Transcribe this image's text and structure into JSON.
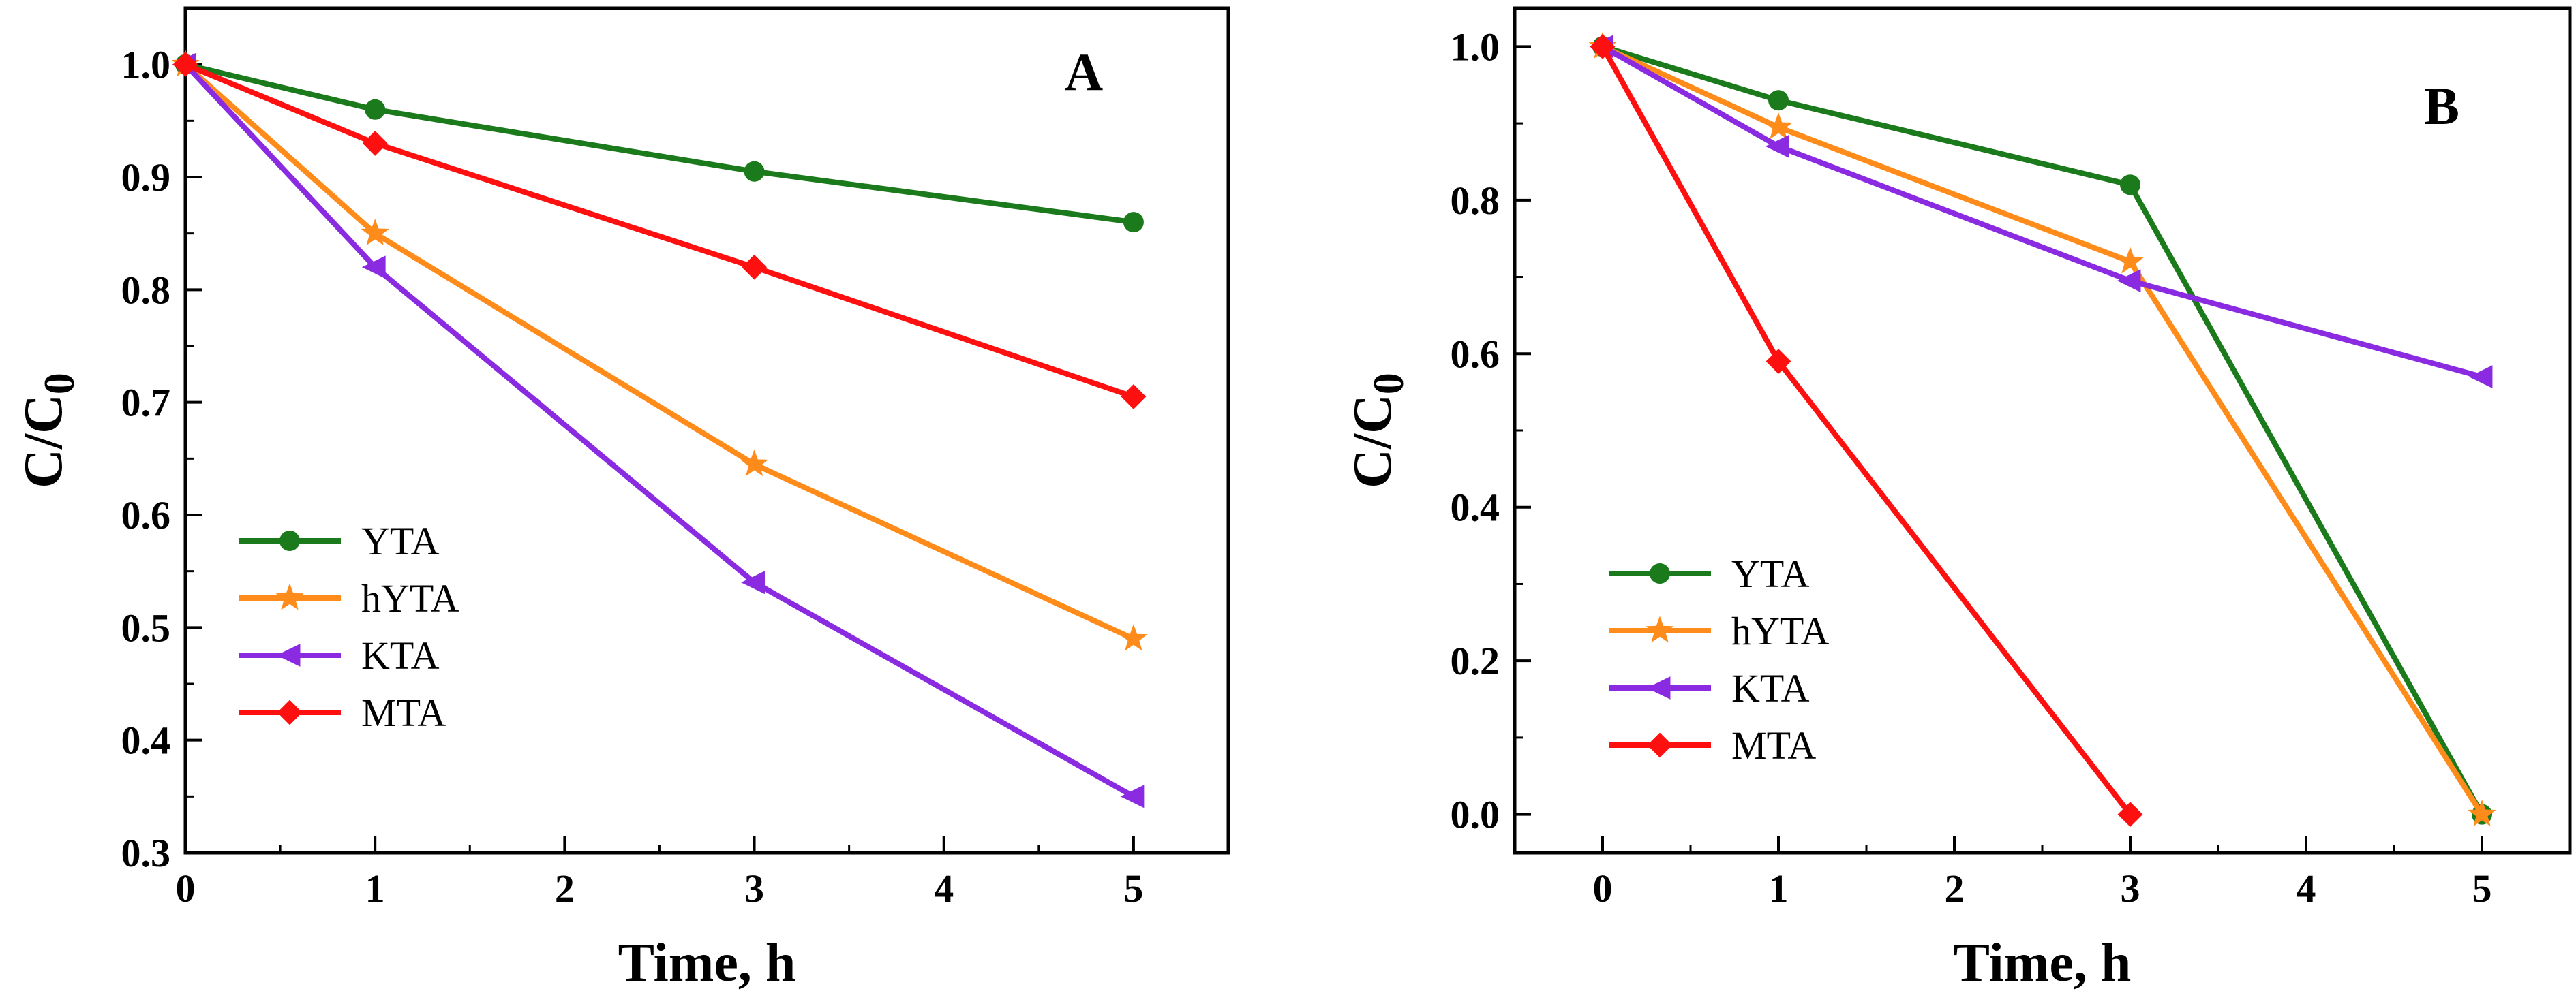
{
  "chart_data": [
    {
      "type": "line",
      "panel_label": "A",
      "xlabel": "Time, h",
      "ylabel_main": "C/C",
      "ylabel_sub": "0",
      "xlim": [
        0,
        5.5
      ],
      "ylim": [
        0.3,
        1.05
      ],
      "xticks": [
        0,
        1,
        2,
        3,
        4,
        5
      ],
      "xtick_labels": [
        "0",
        "1",
        "2",
        "3",
        "4",
        "5"
      ],
      "yticks": [
        0.3,
        0.4,
        0.5,
        0.6,
        0.7,
        0.8,
        0.9,
        1.0
      ],
      "ytick_labels": [
        "0.3",
        "0.4",
        "0.5",
        "0.6",
        "0.7",
        "0.8",
        "0.9",
        "1.0"
      ],
      "legend_position": "lower-left",
      "series": [
        {
          "name": "YTA",
          "color": "#1b7a1b",
          "marker": "circle",
          "x": [
            0,
            1,
            3,
            5
          ],
          "y": [
            1.0,
            0.96,
            0.905,
            0.86
          ]
        },
        {
          "name": "hYTA",
          "color": "#ff8c1a",
          "marker": "star",
          "x": [
            0,
            1,
            3,
            5
          ],
          "y": [
            1.0,
            0.85,
            0.645,
            0.49
          ]
        },
        {
          "name": "KTA",
          "color": "#8a2be2",
          "marker": "triangle-left",
          "x": [
            0,
            1,
            3,
            5
          ],
          "y": [
            1.0,
            0.82,
            0.54,
            0.35
          ]
        },
        {
          "name": "MTA",
          "color": "#ff1010",
          "marker": "diamond",
          "x": [
            0,
            1,
            3,
            5
          ],
          "y": [
            1.0,
            0.93,
            0.82,
            0.705
          ]
        }
      ]
    },
    {
      "type": "line",
      "panel_label": "B",
      "xlabel": "Time, h",
      "ylabel_main": "C/C",
      "ylabel_sub": "0",
      "xlim": [
        -0.5,
        5.5
      ],
      "ylim": [
        -0.05,
        1.05
      ],
      "xticks": [
        0,
        1,
        2,
        3,
        4,
        5
      ],
      "xtick_labels": [
        "0",
        "1",
        "2",
        "3",
        "4",
        "5"
      ],
      "yticks": [
        0.0,
        0.2,
        0.4,
        0.6,
        0.8,
        1.0
      ],
      "ytick_labels": [
        "0.0",
        "0.2",
        "0.4",
        "0.6",
        "0.8",
        "1.0"
      ],
      "legend_position": "lower-left",
      "series": [
        {
          "name": "YTA",
          "color": "#1b7a1b",
          "marker": "circle",
          "x": [
            0,
            1,
            3,
            5
          ],
          "y": [
            1.0,
            0.93,
            0.82,
            0.0
          ]
        },
        {
          "name": "hYTA",
          "color": "#ff8c1a",
          "marker": "star",
          "x": [
            0,
            1,
            3,
            5
          ],
          "y": [
            1.0,
            0.895,
            0.72,
            0.0
          ]
        },
        {
          "name": "KTA",
          "color": "#8a2be2",
          "marker": "triangle-left",
          "x": [
            0,
            1,
            3,
            5
          ],
          "y": [
            1.0,
            0.87,
            0.695,
            0.57
          ]
        },
        {
          "name": "MTA",
          "color": "#ff1010",
          "marker": "diamond",
          "x": [
            0,
            1,
            3
          ],
          "y": [
            1.0,
            0.59,
            0.0
          ]
        }
      ]
    }
  ]
}
